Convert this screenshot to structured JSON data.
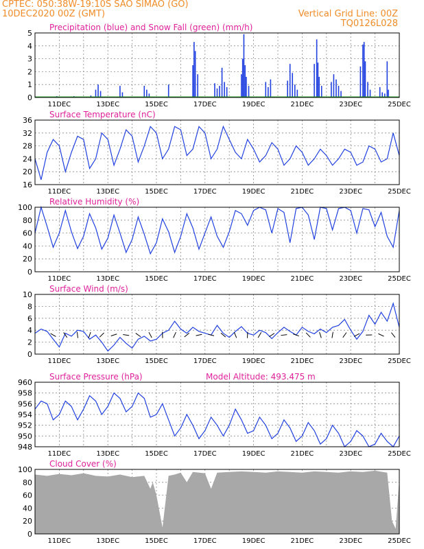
{
  "header": {
    "line1_left": "CPTEC:   050:38W-19:10S   SAO SIMAO (GO)",
    "line2_left": "10DEC2020 00Z (GMT)",
    "line1_right": "Vertical Grid Line: 00Z",
    "line2_right": "TQ0126L028"
  },
  "colors": {
    "header": "#f08c28",
    "title": "#e0209a",
    "series": "#2040e0",
    "snow": "#20a020",
    "arrow": "#000000",
    "cloud": "#a8a8a8"
  },
  "x_ticks": [
    "11DEC",
    "13DEC",
    "15DEC",
    "17DEC",
    "19DEC",
    "21DEC",
    "23DEC",
    "25DEC"
  ],
  "chart_data": [
    {
      "type": "bar",
      "title": "Precipitation (blue) and Snow Fall (green) (mm/h)",
      "ylim": [
        0,
        5
      ],
      "yticks": [
        "0",
        "1",
        "2",
        "3",
        "4",
        "5"
      ],
      "series": [
        {
          "name": "Precipitation",
          "x_day": [
            10.9,
            11.6,
            12.3,
            12.5,
            12.6,
            12.7,
            13.5,
            13.6,
            14.5,
            14.6,
            14.7,
            15.5,
            16.5,
            16.55,
            16.6,
            16.7,
            17.4,
            17.5,
            17.6,
            17.7,
            17.8,
            17.9,
            18.5,
            18.55,
            18.6,
            18.65,
            18.7,
            18.8,
            19.5,
            19.6,
            19.7,
            20.4,
            20.5,
            20.6,
            20.7,
            20.8,
            21.5,
            21.6,
            21.65,
            21.7,
            21.8,
            22.2,
            22.3,
            22.4,
            22.5,
            22.6,
            23.4,
            23.5,
            23.55,
            23.6,
            23.7,
            23.8,
            24.2,
            24.3,
            24.4,
            24.5,
            24.55
          ],
          "values": [
            0.1,
            0.1,
            0.15,
            0.6,
            1.0,
            0.5,
            0.9,
            0.4,
            0.9,
            0.6,
            0.3,
            1.0,
            2.5,
            4.3,
            3.6,
            1.8,
            1.1,
            0.7,
            0.9,
            2.3,
            1.2,
            0.8,
            1.8,
            3.0,
            4.9,
            2.5,
            1.6,
            0.9,
            1.2,
            0.8,
            1.4,
            1.3,
            2.6,
            1.9,
            1.0,
            0.6,
            2.6,
            4.5,
            2.7,
            1.6,
            0.9,
            1.2,
            1.8,
            1.4,
            0.9,
            0.5,
            2.4,
            4.1,
            4.3,
            2.8,
            1.2,
            0.6,
            0.8,
            0.4,
            0.3,
            2.8,
            0.6
          ]
        },
        {
          "name": "Snow Fall",
          "values": [
            0
          ]
        }
      ]
    },
    {
      "type": "line",
      "title": "Surface Temperature (nC)",
      "ylim": [
        16,
        36
      ],
      "yticks": [
        "16",
        "20",
        "24",
        "28",
        "32",
        "36"
      ],
      "x_day": [
        10.0,
        10.25,
        10.5,
        10.75,
        11.0,
        11.25,
        11.5,
        11.75,
        12.0,
        12.25,
        12.5,
        12.75,
        13.0,
        13.25,
        13.5,
        13.75,
        14.0,
        14.25,
        14.5,
        14.75,
        15.0,
        15.25,
        15.5,
        15.75,
        16.0,
        16.25,
        16.5,
        16.75,
        17.0,
        17.25,
        17.5,
        17.75,
        18.0,
        18.25,
        18.5,
        18.75,
        19.0,
        19.25,
        19.5,
        19.75,
        20.0,
        20.25,
        20.5,
        20.75,
        21.0,
        21.25,
        21.5,
        21.75,
        22.0,
        22.25,
        22.5,
        22.75,
        23.0,
        23.25,
        23.5,
        23.75,
        24.0,
        24.25,
        24.5,
        24.75,
        25.0
      ],
      "values": [
        24,
        17.5,
        26,
        30,
        28,
        20,
        26,
        31,
        30,
        21,
        24,
        32,
        30,
        22,
        27,
        33,
        31,
        23,
        28,
        34,
        32,
        24,
        27,
        34,
        33,
        25,
        27,
        34,
        32,
        24,
        27,
        34,
        30,
        26,
        24,
        30,
        27,
        23,
        25,
        29,
        27,
        22,
        24,
        28,
        26,
        22,
        24,
        27,
        25,
        22,
        24,
        27,
        26,
        22,
        23,
        28,
        27,
        23,
        24,
        32,
        25
      ]
    },
    {
      "type": "line",
      "title": "Relative Humidity (%)",
      "ylim": [
        0,
        100
      ],
      "yticks": [
        "0",
        "20",
        "40",
        "60",
        "80",
        "100"
      ],
      "x_day": [
        10.0,
        10.25,
        10.5,
        10.75,
        11.0,
        11.25,
        11.5,
        11.75,
        12.0,
        12.25,
        12.5,
        12.75,
        13.0,
        13.25,
        13.5,
        13.75,
        14.0,
        14.25,
        14.5,
        14.75,
        15.0,
        15.25,
        15.5,
        15.75,
        16.0,
        16.25,
        16.5,
        16.75,
        17.0,
        17.25,
        17.5,
        17.75,
        18.0,
        18.25,
        18.5,
        18.75,
        19.0,
        19.25,
        19.5,
        19.75,
        20.0,
        20.25,
        20.5,
        20.75,
        21.0,
        21.25,
        21.5,
        21.75,
        22.0,
        22.25,
        22.5,
        22.75,
        23.0,
        23.25,
        23.5,
        23.75,
        24.0,
        24.25,
        24.5,
        24.75,
        25.0
      ],
      "values": [
        60,
        100,
        70,
        38,
        60,
        95,
        62,
        36,
        55,
        90,
        68,
        35,
        52,
        88,
        60,
        30,
        50,
        85,
        58,
        28,
        45,
        82,
        62,
        30,
        55,
        90,
        68,
        35,
        60,
        85,
        55,
        38,
        62,
        95,
        90,
        72,
        95,
        100,
        96,
        60,
        98,
        92,
        45,
        98,
        100,
        88,
        50,
        100,
        98,
        65,
        98,
        100,
        95,
        60,
        98,
        96,
        70,
        92,
        55,
        38,
        95
      ]
    },
    {
      "type": "line",
      "title": "Surface Wind (m/s)",
      "ylim": [
        0,
        10
      ],
      "yticks": [
        "0",
        "2",
        "4",
        "6",
        "8",
        "10"
      ],
      "x_day": [
        10.0,
        10.25,
        10.5,
        10.75,
        11.0,
        11.25,
        11.5,
        11.75,
        12.0,
        12.25,
        12.5,
        12.75,
        13.0,
        13.25,
        13.5,
        13.75,
        14.0,
        14.25,
        14.5,
        14.75,
        15.0,
        15.25,
        15.5,
        15.75,
        16.0,
        16.25,
        16.5,
        16.75,
        17.0,
        17.25,
        17.5,
        17.75,
        18.0,
        18.25,
        18.5,
        18.75,
        19.0,
        19.25,
        19.5,
        19.75,
        20.0,
        20.25,
        20.5,
        20.75,
        21.0,
        21.25,
        21.5,
        21.75,
        22.0,
        22.25,
        22.5,
        22.75,
        23.0,
        23.25,
        23.5,
        23.75,
        24.0,
        24.25,
        24.5,
        24.75,
        25.0
      ],
      "values": [
        3.5,
        4.2,
        3.8,
        2.5,
        1.2,
        3.5,
        3.0,
        4.0,
        3.8,
        2.5,
        3.2,
        2.0,
        0.5,
        1.5,
        2.8,
        1.8,
        1.0,
        2.5,
        3.0,
        2.2,
        2.5,
        3.5,
        4.0,
        5.5,
        4.2,
        3.5,
        4.5,
        3.8,
        3.5,
        3.2,
        4.8,
        3.5,
        2.8,
        3.8,
        4.6,
        3.5,
        3.2,
        4.0,
        3.6,
        2.6,
        3.6,
        4.5,
        3.8,
        3.2,
        4.5,
        3.8,
        3.4,
        4.2,
        3.6,
        4.5,
        4.8,
        5.8,
        4.0,
        2.5,
        3.8,
        6.5,
        5.0,
        7.0,
        5.5,
        8.5,
        4.5
      ]
    },
    {
      "type": "line",
      "title": "Surface Pressure (hPa)",
      "annotation": "Model Altitude: 493.475  m",
      "ylim": [
        948,
        960
      ],
      "yticks": [
        "948",
        "950",
        "952",
        "954",
        "956",
        "958",
        "960"
      ],
      "x_day": [
        10.0,
        10.25,
        10.5,
        10.75,
        11.0,
        11.25,
        11.5,
        11.75,
        12.0,
        12.25,
        12.5,
        12.75,
        13.0,
        13.25,
        13.5,
        13.75,
        14.0,
        14.25,
        14.5,
        14.75,
        15.0,
        15.25,
        15.5,
        15.75,
        16.0,
        16.25,
        16.5,
        16.75,
        17.0,
        17.25,
        17.5,
        17.75,
        18.0,
        18.25,
        18.5,
        18.75,
        19.0,
        19.25,
        19.5,
        19.75,
        20.0,
        20.25,
        20.5,
        20.75,
        21.0,
        21.25,
        21.5,
        21.75,
        22.0,
        22.25,
        22.5,
        22.75,
        23.0,
        23.25,
        23.5,
        23.75,
        24.0,
        24.25,
        24.5,
        24.75,
        25.0
      ],
      "values": [
        955,
        956.5,
        956,
        953,
        954,
        956.5,
        955.5,
        953,
        955,
        957.5,
        956.5,
        954,
        955.5,
        958,
        957,
        954.5,
        955.5,
        958,
        957,
        953.5,
        954,
        956,
        953,
        950,
        951.5,
        954,
        952,
        949.5,
        951,
        953.5,
        952,
        950,
        952,
        955,
        953,
        950.5,
        951,
        953.5,
        952,
        949.5,
        950.5,
        953,
        951.5,
        949,
        950,
        952.5,
        951,
        948.5,
        949.5,
        952,
        950.5,
        948,
        949,
        951,
        950,
        948,
        948.5,
        950.5,
        949,
        948,
        950
      ]
    },
    {
      "type": "area",
      "title": "Cloud Cover (%)",
      "ylim": [
        0,
        100
      ],
      "yticks": [
        "0",
        "20",
        "40",
        "60",
        "80",
        "100"
      ],
      "x_day": [
        10.0,
        10.5,
        11.0,
        11.5,
        12.0,
        12.5,
        13.0,
        13.5,
        14.0,
        14.5,
        14.75,
        14.85,
        15.0,
        15.25,
        15.5,
        15.75,
        16.0,
        16.25,
        16.5,
        17.0,
        17.25,
        17.5,
        18.0,
        18.5,
        19.0,
        19.5,
        20.0,
        20.5,
        21.0,
        21.5,
        22.0,
        22.5,
        23.0,
        23.5,
        24.0,
        24.5,
        24.7,
        24.85,
        25.0
      ],
      "values": [
        92,
        90,
        93,
        91,
        94,
        90,
        89,
        92,
        88,
        90,
        70,
        80,
        60,
        10,
        90,
        92,
        95,
        80,
        96,
        94,
        70,
        95,
        96,
        97,
        96,
        95,
        97,
        96,
        95,
        97,
        96,
        95,
        97,
        96,
        98,
        95,
        20,
        8,
        85
      ]
    }
  ]
}
